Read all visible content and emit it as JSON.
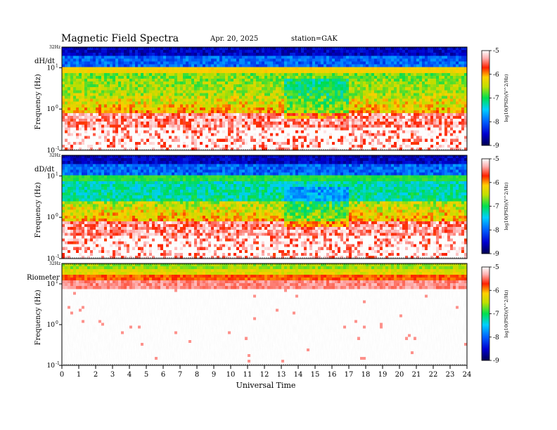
{
  "header": {
    "title": "Magnetic  Field  Spectra",
    "date": "Apr. 20, 2025",
    "station": "station=GAK"
  },
  "chart_data": [
    {
      "type": "heatmap",
      "panel_label": "dH/dt",
      "ylabel": "Frequency  (Hz)",
      "ytick_labels": [
        "10^-1",
        "10^0",
        "10^1"
      ],
      "top_label": "32Hz",
      "xlim": [
        0,
        24
      ],
      "colorbar": {
        "label": "log10(PSD)(V^2/Hz)",
        "ticks": [
          "-5",
          "-6",
          "-7",
          "-8",
          "-9"
        ],
        "range": [
          -9,
          -5
        ]
      }
    },
    {
      "type": "heatmap",
      "panel_label": "dD/dt",
      "ylabel": "Frequency  (Hz)",
      "ytick_labels": [
        "10^-1",
        "10^0",
        "10^1"
      ],
      "top_label": "32Hz",
      "xlim": [
        0,
        24
      ],
      "colorbar": {
        "label": "log10(PSD)(V^2/Hz)",
        "ticks": [
          "-5",
          "-6",
          "-7",
          "-8",
          "-9"
        ],
        "range": [
          -9,
          -5
        ]
      }
    },
    {
      "type": "heatmap",
      "panel_label": "Riometer",
      "ylabel": "Frequency  (Hz)",
      "ytick_labels": [
        "10^-1",
        "10^0",
        "10^1"
      ],
      "top_label": "32Hz",
      "xlim": [
        0,
        24
      ],
      "colorbar": {
        "label": "log10(PSD)(V^2/Hz)",
        "ticks": [
          "-5",
          "-6",
          "-7",
          "-8",
          "-9"
        ],
        "range": [
          -9,
          -5
        ]
      }
    }
  ],
  "xaxis": {
    "label": "Universal  Time",
    "ticks": [
      "0",
      "1",
      "2",
      "3",
      "4",
      "5",
      "6",
      "7",
      "8",
      "9",
      "10",
      "11",
      "12",
      "13",
      "14",
      "15",
      "16",
      "17",
      "18",
      "19",
      "20",
      "21",
      "22",
      "23",
      "24"
    ]
  }
}
